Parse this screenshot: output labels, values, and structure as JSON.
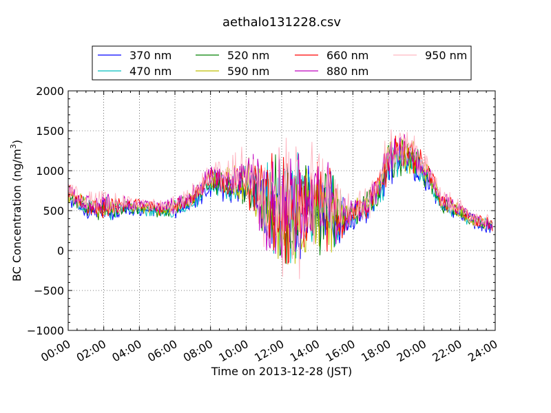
{
  "chart_data": {
    "type": "line",
    "title": "aethalo131228.csv",
    "xlabel": "Time on 2013-12-28 (JST)",
    "ylabel": "BC Concentration (ng/m",
    "ylabel_sup": "3",
    "ylabel_close": ")",
    "xlim": [
      "00:00",
      "24:00"
    ],
    "ylim": [
      -1000,
      2000
    ],
    "xticks": [
      "00:00",
      "02:00",
      "04:00",
      "06:00",
      "08:00",
      "10:00",
      "12:00",
      "14:00",
      "16:00",
      "18:00",
      "20:00",
      "22:00",
      "24:00"
    ],
    "yticks": [
      -1000,
      -500,
      0,
      500,
      1000,
      1500,
      2000
    ],
    "grid": true,
    "legend_position": "top-center",
    "series": [
      {
        "name": "370 nm",
        "color": "#0000ff"
      },
      {
        "name": "470 nm",
        "color": "#00bfbf"
      },
      {
        "name": "520 nm",
        "color": "#008000"
      },
      {
        "name": "590 nm",
        "color": "#bfbf00"
      },
      {
        "name": "660 nm",
        "color": "#ff0000"
      },
      {
        "name": "880 nm",
        "color": "#bf00bf"
      },
      {
        "name": "950 nm",
        "color": "#ffb6c1"
      }
    ],
    "profile_hours": [
      0,
      0.5,
      1,
      2,
      3,
      4,
      5,
      6,
      7,
      7.5,
      8,
      9,
      10,
      11,
      12,
      13,
      14,
      15,
      15.5,
      16,
      17,
      17.5,
      18,
      18.5,
      19,
      19.5,
      20,
      20.5,
      21,
      22,
      23,
      23.8
    ],
    "profile_values": [
      720,
      620,
      560,
      540,
      560,
      560,
      520,
      550,
      650,
      760,
      900,
      850,
      900,
      600,
      470,
      500,
      560,
      480,
      420,
      460,
      600,
      800,
      1100,
      1250,
      1200,
      1150,
      1000,
      850,
      600,
      500,
      360,
      320
    ],
    "profile_noise": [
      100,
      80,
      90,
      120,
      80,
      60,
      70,
      80,
      90,
      100,
      120,
      150,
      220,
      400,
      600,
      550,
      450,
      380,
      180,
      120,
      130,
      150,
      200,
      200,
      170,
      180,
      140,
      100,
      90,
      70,
      70,
      70
    ],
    "samples_per_hour": 20
  }
}
